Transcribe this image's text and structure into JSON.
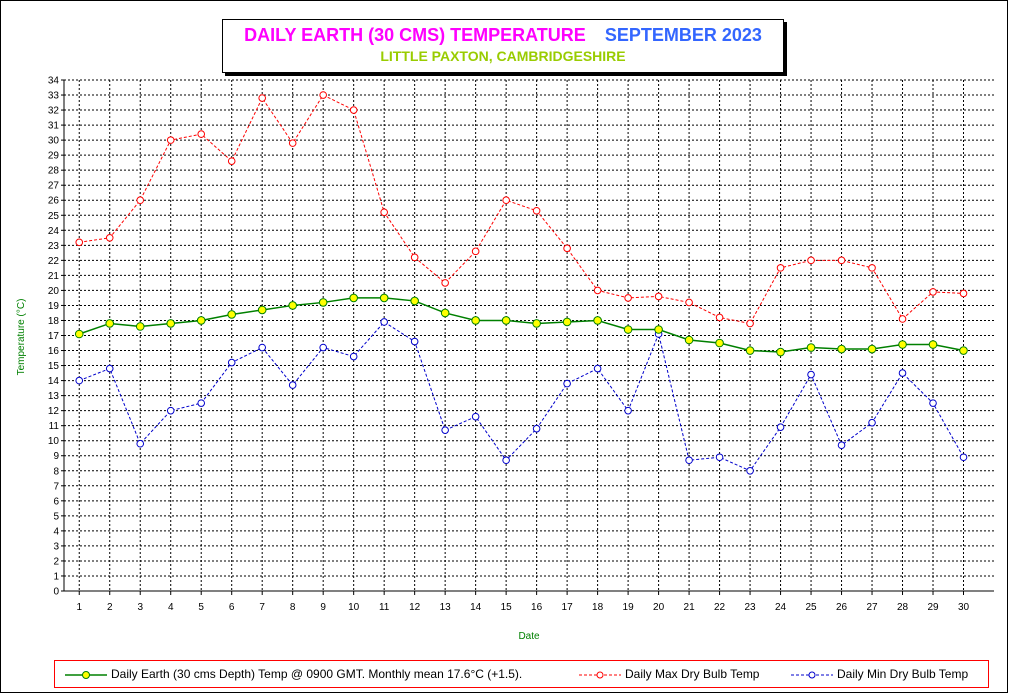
{
  "header": {
    "title": "DAILY EARTH (30 CMS) TEMPERATURE",
    "month": "SEPTEMBER 2023",
    "subtitle": "LITTLE PAXTON, CAMBRIDGESHIRE"
  },
  "colors": {
    "earth": "#008000",
    "earth_marker": "#ffff00",
    "max": "#ff0000",
    "min": "#0000cc",
    "title": "#ff00ff",
    "month": "#3366ff",
    "subtitle": "#99cc00",
    "axis_label": "#008000"
  },
  "chart_data": {
    "type": "line",
    "xlabel": "Date",
    "ylabel": "Temperature (°C)",
    "ylim": [
      0,
      34
    ],
    "x": [
      1,
      2,
      3,
      4,
      5,
      6,
      7,
      8,
      9,
      10,
      11,
      12,
      13,
      14,
      15,
      16,
      17,
      18,
      19,
      20,
      21,
      22,
      23,
      24,
      25,
      26,
      27,
      28,
      29,
      30
    ],
    "yticks": [
      0,
      1,
      2,
      3,
      4,
      5,
      6,
      7,
      8,
      9,
      10,
      11,
      12,
      13,
      14,
      15,
      16,
      17,
      18,
      19,
      20,
      21,
      22,
      23,
      24,
      25,
      26,
      27,
      28,
      29,
      30,
      31,
      32,
      33,
      34
    ],
    "grid": true,
    "legend_position": "bottom",
    "series": [
      {
        "name": "Daily Earth (30 cms Depth) Temp @ 0900 GMT. Monthly mean 17.6°C (+1.5).",
        "style": "solid",
        "values": [
          17.1,
          17.8,
          17.6,
          17.8,
          18.0,
          18.4,
          18.7,
          19.0,
          19.2,
          19.5,
          19.5,
          19.3,
          18.5,
          18.0,
          18.0,
          17.8,
          17.9,
          18.0,
          17.4,
          17.4,
          16.7,
          16.5,
          16.0,
          15.9,
          16.2,
          16.1,
          16.1,
          16.4,
          16.4,
          16.0
        ]
      },
      {
        "name": "Daily Max Dry Bulb Temp",
        "style": "dashed",
        "values": [
          23.2,
          23.5,
          26.0,
          30.0,
          30.4,
          28.6,
          32.8,
          29.8,
          33.0,
          32.0,
          25.2,
          22.2,
          20.5,
          22.6,
          26.0,
          25.3,
          22.8,
          20.0,
          19.5,
          19.6,
          19.2,
          18.2,
          17.8,
          21.5,
          22.0,
          22.0,
          21.5,
          18.1,
          19.9,
          19.8
        ]
      },
      {
        "name": "Daily Min Dry Bulb Temp",
        "style": "dashed",
        "values": [
          14.0,
          14.8,
          9.8,
          12.0,
          12.5,
          15.2,
          16.2,
          13.7,
          16.2,
          15.6,
          17.9,
          16.6,
          10.7,
          11.6,
          8.7,
          10.8,
          13.8,
          14.8,
          12.0,
          17.1,
          8.7,
          8.9,
          8.0,
          10.9,
          14.4,
          9.7,
          11.2,
          14.5,
          12.5,
          8.9
        ]
      }
    ]
  }
}
